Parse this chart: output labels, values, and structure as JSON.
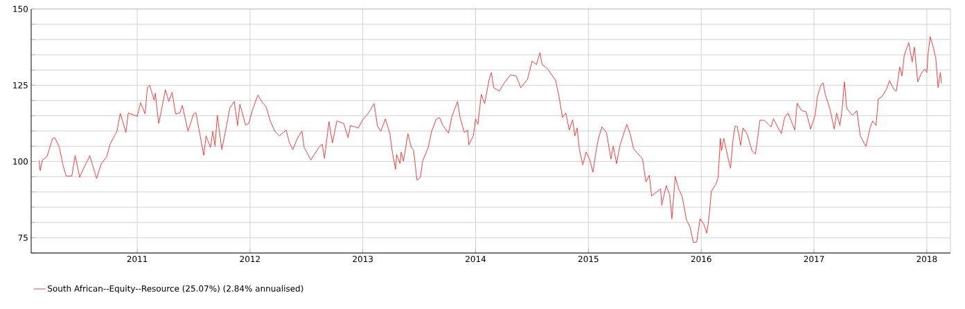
{
  "chart_data": {
    "type": "line",
    "xlim": [
      2010.06,
      2018.21
    ],
    "ylim": [
      70,
      150
    ],
    "xticks": [
      2011,
      2012,
      2013,
      2014,
      2015,
      2016,
      2017,
      2018
    ],
    "yticks": [
      {
        "value": 70,
        "label": null
      },
      75,
      {
        "value": 80,
        "label": null
      },
      {
        "value": 85,
        "label": null
      },
      {
        "value": 90,
        "label": null
      },
      {
        "value": 95,
        "label": null
      },
      100,
      {
        "value": 105,
        "label": null
      },
      {
        "value": 110,
        "label": null
      },
      {
        "value": 115,
        "label": null
      },
      {
        "value": 120,
        "label": null
      },
      125,
      {
        "value": 130,
        "label": null
      },
      {
        "value": 135,
        "label": null
      },
      {
        "value": 140,
        "label": null
      },
      {
        "value": 145,
        "label": null
      },
      150
    ],
    "grid": true,
    "legend": "bottom left",
    "marker": "none",
    "line_style": "solid",
    "series": [
      {
        "name": "South African--Equity--Resource (25.07%) (2.84% annualised)",
        "color": "#ff3b3b",
        "x": [
          2010.13,
          2010.14,
          2010.16,
          2010.2,
          2010.25,
          2010.27,
          2010.31,
          2010.34,
          2010.37,
          2010.42,
          2010.45,
          2010.49,
          2010.52,
          2010.58,
          2010.64,
          2010.68,
          2010.73,
          2010.76,
          2010.82,
          2010.85,
          2010.9,
          2010.92,
          2011.0,
          2011.03,
          2011.07,
          2011.09,
          2011.11,
          2011.15,
          2011.16,
          2011.19,
          2011.21,
          2011.25,
          2011.28,
          2011.31,
          2011.34,
          2011.38,
          2011.4,
          2011.45,
          2011.5,
          2011.52,
          2011.59,
          2011.61,
          2011.65,
          2011.67,
          2011.69,
          2011.71,
          2011.75,
          2011.79,
          2011.82,
          2011.86,
          2011.89,
          2011.91,
          2011.96,
          2011.99,
          2012.02,
          2012.07,
          2012.11,
          2012.14,
          2012.18,
          2012.22,
          2012.26,
          2012.32,
          2012.35,
          2012.38,
          2012.42,
          2012.46,
          2012.48,
          2012.54,
          2012.61,
          2012.64,
          2012.66,
          2012.7,
          2012.73,
          2012.77,
          2012.83,
          2012.87,
          2012.89,
          2012.96,
          2013.0,
          2013.05,
          2013.1,
          2013.13,
          2013.16,
          2013.2,
          2013.24,
          2013.26,
          2013.29,
          2013.3,
          2013.33,
          2013.34,
          2013.36,
          2013.4,
          2013.43,
          2013.45,
          2013.48,
          2013.51,
          2013.53,
          2013.58,
          2013.61,
          2013.65,
          2013.68,
          2013.71,
          2013.76,
          2013.79,
          2013.84,
          2013.86,
          2013.9,
          2013.93,
          2013.94,
          2013.98,
          2014.0,
          2014.02,
          2014.05,
          2014.08,
          2014.12,
          2014.14,
          2014.16,
          2014.21,
          2014.26,
          2014.31,
          2014.36,
          2014.4,
          2014.46,
          2014.5,
          2014.54,
          2014.57,
          2014.59,
          2014.64,
          2014.71,
          2014.74,
          2014.77,
          2014.8,
          2014.83,
          2014.86,
          2014.88,
          2014.9,
          2014.92,
          2014.95,
          2014.98,
          2015.01,
          2015.04,
          2015.07,
          2015.09,
          2015.12,
          2015.16,
          2015.2,
          2015.22,
          2015.25,
          2015.28,
          2015.34,
          2015.37,
          2015.4,
          2015.48,
          2015.51,
          2015.54,
          2015.56,
          2015.64,
          2015.65,
          2015.69,
          2015.72,
          2015.74,
          2015.77,
          2015.8,
          2015.83,
          2015.87,
          2015.9,
          2015.93,
          2015.96,
          2015.99,
          2016.02,
          2016.05,
          2016.07,
          2016.09,
          2016.13,
          2016.15,
          2016.17,
          2016.18,
          2016.2,
          2016.24,
          2016.26,
          2016.28,
          2016.3,
          2016.32,
          2016.35,
          2016.37,
          2016.41,
          2016.45,
          2016.48,
          2016.5,
          2016.52,
          2016.56,
          2016.62,
          2016.64,
          2016.71,
          2016.74,
          2016.77,
          2016.83,
          2016.85,
          2016.89,
          2016.93,
          2016.97,
          2017.01,
          2017.03,
          2017.06,
          2017.08,
          2017.1,
          2017.14,
          2017.18,
          2017.2,
          2017.23,
          2017.25,
          2017.27,
          2017.29,
          2017.34,
          2017.38,
          2017.41,
          2017.46,
          2017.5,
          2017.52,
          2017.55,
          2017.57,
          2017.6,
          2017.64,
          2017.67,
          2017.71,
          2017.73,
          2017.76,
          2017.78,
          2017.8,
          2017.84,
          2017.87,
          2017.89,
          2017.92,
          2017.95,
          2017.98,
          2018.0,
          2018.01,
          2018.03,
          2018.06,
          2018.08,
          2018.1,
          2018.12,
          2018.13
        ],
        "values": [
          100.3,
          97.0,
          100.5,
          101.6,
          107.6,
          107.8,
          104.6,
          99.1,
          95.2,
          95.2,
          102.0,
          94.8,
          97.4,
          101.9,
          94.4,
          99.2,
          101.6,
          105.7,
          109.9,
          115.8,
          109.5,
          115.9,
          114.8,
          119.3,
          115.6,
          124.2,
          125.0,
          120.1,
          122.4,
          112.5,
          115.9,
          123.5,
          119.7,
          122.7,
          115.6,
          116.0,
          118.4,
          109.9,
          115.6,
          116.0,
          102.0,
          108.4,
          104.6,
          109.9,
          105.0,
          115.2,
          103.9,
          111.4,
          117.4,
          119.7,
          111.8,
          118.8,
          112.0,
          112.5,
          116.7,
          121.8,
          119.3,
          118.2,
          113.3,
          109.9,
          108.4,
          110.3,
          106.1,
          103.9,
          107.6,
          110.0,
          104.6,
          100.5,
          104.6,
          105.7,
          101.0,
          113.1,
          106.1,
          113.3,
          112.5,
          107.8,
          111.8,
          111.0,
          113.7,
          115.9,
          119.0,
          111.6,
          109.9,
          114.0,
          109.1,
          103.5,
          97.4,
          102.3,
          99.3,
          103.1,
          100.1,
          109.1,
          104.6,
          103.8,
          93.9,
          94.8,
          100.1,
          104.6,
          109.9,
          113.8,
          114.4,
          111.8,
          109.3,
          114.8,
          119.7,
          114.8,
          109.5,
          110.3,
          105.5,
          108.4,
          114.0,
          112.2,
          122.0,
          119.0,
          126.9,
          129.2,
          124.2,
          123.1,
          126.1,
          128.4,
          128.0,
          124.2,
          126.9,
          132.9,
          131.8,
          135.7,
          131.8,
          130.3,
          126.5,
          121.2,
          114.4,
          115.9,
          110.3,
          113.7,
          108.4,
          111.0,
          103.9,
          98.9,
          103.1,
          100.8,
          96.5,
          103.9,
          107.6,
          111.4,
          109.5,
          100.8,
          105.0,
          99.3,
          105.3,
          112.2,
          109.1,
          104.2,
          100.8,
          93.3,
          95.5,
          88.7,
          91.0,
          85.7,
          92.1,
          89.1,
          81.2,
          95.1,
          91.0,
          88.7,
          80.8,
          78.6,
          73.5,
          73.6,
          81.2,
          79.7,
          76.5,
          82.0,
          90.3,
          92.5,
          94.8,
          107.6,
          103.5,
          107.6,
          100.8,
          97.8,
          106.5,
          111.6,
          111.4,
          105.3,
          111.0,
          108.8,
          103.5,
          102.5,
          107.6,
          113.5,
          113.5,
          111.3,
          114.0,
          109.1,
          114.4,
          115.9,
          110.3,
          119.1,
          116.7,
          116.3,
          110.6,
          115.2,
          121.2,
          125.0,
          125.8,
          122.0,
          117.4,
          110.6,
          115.9,
          111.8,
          117.4,
          126.1,
          117.4,
          115.2,
          116.7,
          108.4,
          104.9,
          111.4,
          113.3,
          111.8,
          120.5,
          121.2,
          123.5,
          126.5,
          123.5,
          123.1,
          131.0,
          128.0,
          134.8,
          139.0,
          132.6,
          137.5,
          126.1,
          128.8,
          130.3,
          129.2,
          134.8,
          140.9,
          137.1,
          133.7,
          124.2,
          129.2,
          125.6
        ]
      }
    ]
  }
}
